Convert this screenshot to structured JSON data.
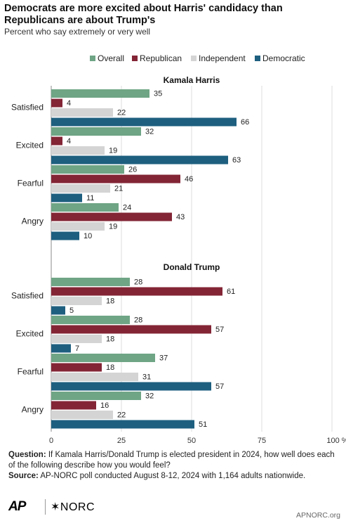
{
  "header": {
    "title": "Democrats are more excited about Harris' candidacy than Republicans are about Trump's",
    "subtitle": "Percent who say extremely or very well"
  },
  "colors": {
    "Overall": "#6fa585",
    "Republican": "#832535",
    "Independent": "#d4d4d4",
    "Democratic": "#1e5f7f"
  },
  "chart_data": {
    "type": "bar",
    "orientation": "horizontal",
    "series_names": [
      "Overall",
      "Republican",
      "Independent",
      "Democratic"
    ],
    "legend_position": "top-right",
    "xlim": [
      0,
      100
    ],
    "x_ticks": [
      "0",
      "25",
      "50",
      "75",
      "100 %"
    ],
    "grid": true,
    "panels": [
      {
        "title": "Kamala Harris",
        "categories": [
          "Satisfied",
          "Excited",
          "Fearful",
          "Angry"
        ],
        "series": [
          {
            "name": "Overall",
            "values": [
              35,
              32,
              26,
              24
            ]
          },
          {
            "name": "Republican",
            "values": [
              4,
              4,
              46,
              43
            ]
          },
          {
            "name": "Independent",
            "values": [
              22,
              19,
              21,
              19
            ]
          },
          {
            "name": "Democratic",
            "values": [
              66,
              63,
              11,
              10
            ]
          }
        ]
      },
      {
        "title": "Donald Trump",
        "categories": [
          "Satisfied",
          "Excited",
          "Fearful",
          "Angry"
        ],
        "series": [
          {
            "name": "Overall",
            "values": [
              28,
              28,
              37,
              32
            ]
          },
          {
            "name": "Republican",
            "values": [
              61,
              57,
              18,
              16
            ]
          },
          {
            "name": "Independent",
            "values": [
              18,
              18,
              31,
              22
            ]
          },
          {
            "name": "Democratic",
            "values": [
              5,
              7,
              57,
              51
            ]
          }
        ]
      }
    ]
  },
  "footnote": {
    "question_label": "Question:",
    "question_text": " If Kamala Harris/Donald Trump is elected president in 2024, how well does each of the following describe how you would feel?",
    "source_label": "Source:",
    "source_text": " AP-NORC poll conducted August 8-12, 2024 with 1,164 adults nationwide."
  },
  "branding": {
    "ap": "AP",
    "norc": "✶NORC",
    "site": "APNORC.org"
  }
}
